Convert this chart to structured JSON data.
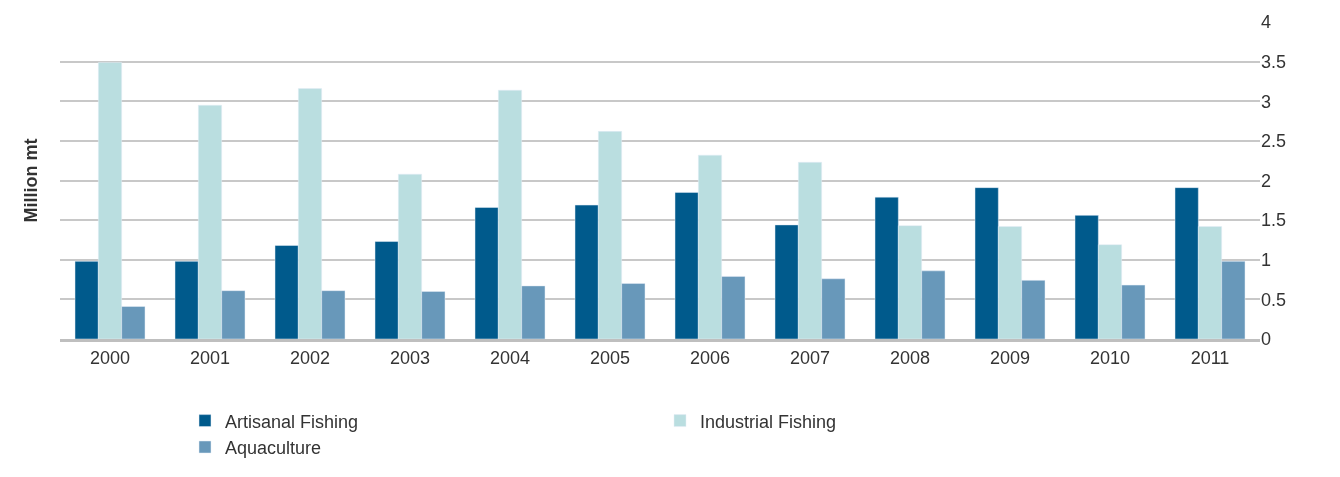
{
  "chart_data": {
    "type": "bar",
    "ylabel": "Million mt",
    "categories": [
      "2000",
      "2001",
      "2002",
      "2003",
      "2004",
      "2005",
      "2006",
      "2007",
      "2008",
      "2009",
      "2010",
      "2011"
    ],
    "series": [
      {
        "name": "Artisanal Fishing",
        "color": "#005a8c",
        "values": [
          0.98,
          0.98,
          1.18,
          1.23,
          1.66,
          1.69,
          1.85,
          1.44,
          1.79,
          1.91,
          1.56,
          1.91
        ]
      },
      {
        "name": "Industrial Fishing",
        "color": "#badee0",
        "values": [
          3.49,
          2.95,
          3.16,
          2.08,
          3.14,
          2.62,
          2.32,
          2.23,
          1.43,
          1.42,
          1.19,
          1.42
        ]
      },
      {
        "name": "Aquaculture",
        "color": "#6898ba",
        "values": [
          0.41,
          0.61,
          0.61,
          0.6,
          0.67,
          0.7,
          0.79,
          0.76,
          0.86,
          0.74,
          0.68,
          0.98
        ]
      }
    ],
    "ylim": [
      0,
      4
    ],
    "yticks": [
      0,
      0.5,
      1,
      1.5,
      2,
      2.5,
      3,
      3.5,
      4
    ],
    "grid": "y",
    "legend": "bottom"
  }
}
